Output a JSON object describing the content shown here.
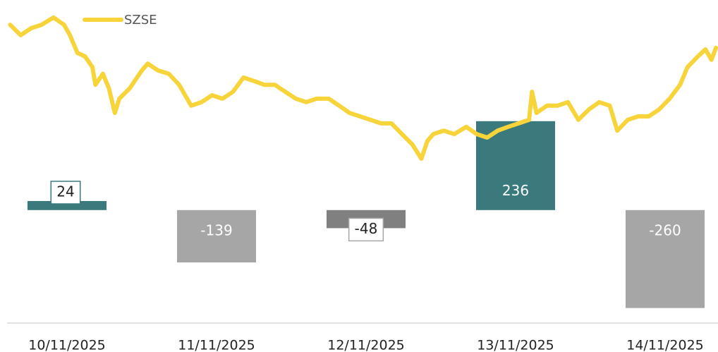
{
  "chart_data": {
    "type": "bar",
    "categories": [
      "10/11/2025",
      "11/11/2025",
      "12/11/2025",
      "13/11/2025",
      "14/11/2025"
    ],
    "values": [
      24,
      -139,
      -48,
      236,
      -260
    ],
    "colors": [
      "#3a7a7c",
      "#a6a6a6",
      "#808080",
      "#3a7a7c",
      "#a6a6a6"
    ],
    "ylim": [
      -300,
      539
    ],
    "y2lim": [
      0,
      100
    ],
    "series": [
      {
        "name": "SZSE",
        "color": "#f7d43a",
        "axis": "y2",
        "type": "line",
        "x": [
          -0.38,
          -0.31,
          -0.24,
          -0.17,
          -0.09,
          -0.02,
          0.02,
          0.07,
          0.12,
          0.17,
          0.19,
          0.24,
          0.28,
          0.32,
          0.35,
          0.42,
          0.5,
          0.54,
          0.61,
          0.68,
          0.75,
          0.83,
          0.9,
          0.97,
          1.04,
          1.11,
          1.18,
          1.25,
          1.32,
          1.39,
          1.46,
          1.53,
          1.6,
          1.67,
          1.75,
          1.82,
          1.89,
          1.96,
          2.03,
          2.1,
          2.17,
          2.24,
          2.31,
          2.37,
          2.41,
          2.45,
          2.52,
          2.59,
          2.67,
          2.74,
          2.81,
          2.88,
          2.95,
          3.02,
          3.09,
          3.11,
          3.14,
          3.21,
          3.28,
          3.35,
          3.42,
          3.49,
          3.56,
          3.63,
          3.68,
          3.75,
          3.82,
          3.89,
          3.96,
          4.03,
          4.1,
          4.15,
          4.22,
          4.27,
          4.31,
          4.34
        ],
        "values": [
          94.4,
          91.1,
          93.3,
          94.4,
          96.7,
          94.4,
          91.1,
          85.5,
          84.4,
          81.0,
          75.4,
          78.9,
          74.3,
          66.5,
          71.0,
          74.3,
          79.9,
          82.1,
          79.9,
          78.9,
          75.4,
          68.8,
          69.9,
          72.1,
          71.0,
          73.2,
          77.7,
          76.6,
          75.4,
          75.4,
          73.2,
          71.0,
          69.9,
          71.0,
          71.0,
          68.8,
          66.5,
          65.4,
          64.3,
          63.2,
          63.2,
          59.8,
          56.5,
          52.0,
          57.6,
          59.8,
          60.9,
          59.8,
          62.1,
          59.8,
          58.7,
          60.9,
          62.1,
          63.2,
          64.3,
          73.2,
          66.5,
          68.8,
          68.8,
          69.9,
          64.3,
          67.6,
          69.9,
          68.8,
          60.9,
          64.3,
          65.4,
          65.4,
          67.6,
          71.0,
          75.4,
          81.0,
          84.4,
          86.6,
          83.3,
          87.1
        ]
      }
    ]
  }
}
